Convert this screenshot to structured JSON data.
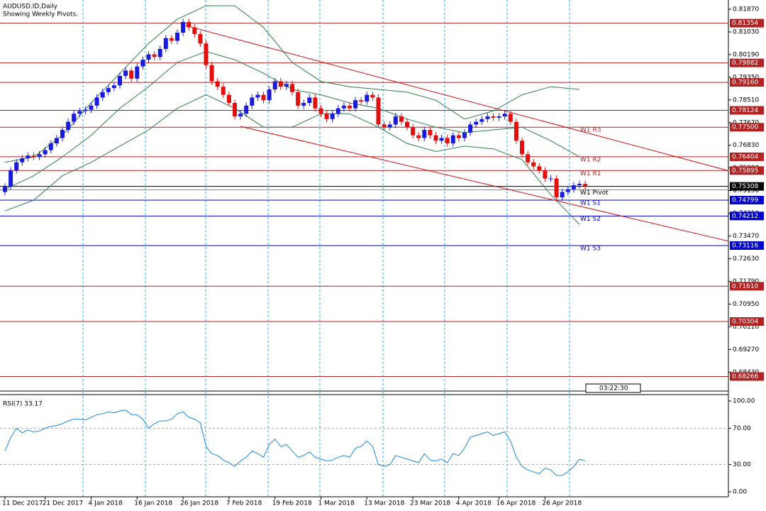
{
  "chart_data": {
    "type": "candlestick",
    "title": "AUDUSD.ID,Daily",
    "subtitle": "Showing Weekly Pivots.",
    "ylim": [
      0.67806,
      0.82212
    ],
    "yticks": [
      {
        "value": 0.8187,
        "label": "0.81870"
      },
      {
        "value": 0.8103,
        "label": "0.81030"
      },
      {
        "value": 0.8019,
        "label": "0.80190"
      },
      {
        "value": 0.7935,
        "label": "0.79350"
      },
      {
        "value": 0.7851,
        "label": "0.78510"
      },
      {
        "value": 0.7767,
        "label": "0.77670"
      },
      {
        "value": 0.7683,
        "label": "0.76830"
      },
      {
        "value": 0.7599,
        "label": "0.75990"
      },
      {
        "value": 0.7515,
        "label": "0.75150"
      },
      {
        "value": 0.7431,
        "label": "0.74310"
      },
      {
        "value": 0.7347,
        "label": "0.73470"
      },
      {
        "value": 0.7263,
        "label": "0.72630"
      },
      {
        "value": 0.7179,
        "label": "0.71790"
      },
      {
        "value": 0.7095,
        "label": "0.70950"
      },
      {
        "value": 0.7011,
        "label": "0.70110"
      },
      {
        "value": 0.6927,
        "label": "0.69270"
      },
      {
        "value": 0.6843,
        "label": "0.68430"
      }
    ],
    "xticks": [
      {
        "value": 0,
        "label": "11 Dec 2017"
      },
      {
        "value": 7,
        "label": "21 Dec 2017"
      },
      {
        "value": 15,
        "label": "4 Jan 2018"
      },
      {
        "value": 23,
        "label": "16 Jan 2018"
      },
      {
        "value": 31,
        "label": "26 Jan 2018"
      },
      {
        "value": 39,
        "label": "7 Feb 2018"
      },
      {
        "value": 47,
        "label": "19 Feb 2018"
      },
      {
        "value": 55,
        "label": "1 Mar 2018"
      },
      {
        "value": 63,
        "label": "13 Mar 2018"
      },
      {
        "value": 71,
        "label": "23 Mar 2018"
      },
      {
        "value": 79,
        "label": "4 Apr 2018"
      },
      {
        "value": 86,
        "label": "16 Apr 2018"
      },
      {
        "value": 94,
        "label": "26 Apr 2018"
      }
    ],
    "up_color": "#1a1adc",
    "down_color": "#e01010",
    "candles": [
      [
        0.751,
        0.7542,
        0.7498,
        0.753
      ],
      [
        0.753,
        0.7602,
        0.7518,
        0.759
      ],
      [
        0.759,
        0.7632,
        0.7578,
        0.762
      ],
      [
        0.762,
        0.7647,
        0.7608,
        0.7635
      ],
      [
        0.7635,
        0.7657,
        0.7623,
        0.7645
      ],
      [
        0.7645,
        0.7657,
        0.7628,
        0.764
      ],
      [
        0.764,
        0.7662,
        0.7628,
        0.765
      ],
      [
        0.765,
        0.7677,
        0.7638,
        0.7665
      ],
      [
        0.7665,
        0.7702,
        0.7653,
        0.769
      ],
      [
        0.769,
        0.7722,
        0.7678,
        0.771
      ],
      [
        0.771,
        0.7752,
        0.7698,
        0.774
      ],
      [
        0.774,
        0.7782,
        0.7728,
        0.777
      ],
      [
        0.777,
        0.7812,
        0.7758,
        0.78
      ],
      [
        0.78,
        0.7822,
        0.7788,
        0.781
      ],
      [
        0.781,
        0.7827,
        0.7798,
        0.7815
      ],
      [
        0.7815,
        0.7842,
        0.7803,
        0.783
      ],
      [
        0.783,
        0.7872,
        0.7818,
        0.786
      ],
      [
        0.786,
        0.7892,
        0.7848,
        0.788
      ],
      [
        0.788,
        0.7907,
        0.7868,
        0.7895
      ],
      [
        0.7895,
        0.7917,
        0.7883,
        0.7905
      ],
      [
        0.7905,
        0.7952,
        0.7893,
        0.794
      ],
      [
        0.794,
        0.7972,
        0.7928,
        0.796
      ],
      [
        0.796,
        0.7972,
        0.7918,
        0.793
      ],
      [
        0.793,
        0.7987,
        0.7918,
        0.7975
      ],
      [
        0.7975,
        0.8012,
        0.7963,
        0.8
      ],
      [
        0.8,
        0.8032,
        0.7988,
        0.802
      ],
      [
        0.802,
        0.8032,
        0.7998,
        0.801
      ],
      [
        0.801,
        0.8052,
        0.7998,
        0.804
      ],
      [
        0.804,
        0.8092,
        0.8028,
        0.808
      ],
      [
        0.808,
        0.8092,
        0.8058,
        0.807
      ],
      [
        0.807,
        0.8112,
        0.8058,
        0.81
      ],
      [
        0.81,
        0.8152,
        0.8088,
        0.814
      ],
      [
        0.814,
        0.8152,
        0.8108,
        0.812
      ],
      [
        0.812,
        0.8132,
        0.8083,
        0.8095
      ],
      [
        0.8095,
        0.8107,
        0.8048,
        0.806
      ],
      [
        0.806,
        0.8072,
        0.7968,
        0.798
      ],
      [
        0.798,
        0.7992,
        0.7908,
        0.792
      ],
      [
        0.792,
        0.7932,
        0.7888,
        0.79
      ],
      [
        0.79,
        0.7912,
        0.7858,
        0.787
      ],
      [
        0.787,
        0.7882,
        0.7828,
        0.784
      ],
      [
        0.784,
        0.7852,
        0.7778,
        0.779
      ],
      [
        0.779,
        0.7812,
        0.7778,
        0.78
      ],
      [
        0.78,
        0.7842,
        0.7788,
        0.783
      ],
      [
        0.783,
        0.7872,
        0.7818,
        0.786
      ],
      [
        0.786,
        0.7882,
        0.7848,
        0.787
      ],
      [
        0.787,
        0.7882,
        0.7838,
        0.785
      ],
      [
        0.785,
        0.7902,
        0.7838,
        0.789
      ],
      [
        0.789,
        0.7932,
        0.7878,
        0.792
      ],
      [
        0.792,
        0.7932,
        0.7888,
        0.79
      ],
      [
        0.79,
        0.7922,
        0.7888,
        0.791
      ],
      [
        0.791,
        0.7922,
        0.7868,
        0.788
      ],
      [
        0.788,
        0.7892,
        0.7818,
        0.783
      ],
      [
        0.783,
        0.7852,
        0.7818,
        0.784
      ],
      [
        0.784,
        0.7872,
        0.7828,
        0.786
      ],
      [
        0.786,
        0.7872,
        0.7808,
        0.782
      ],
      [
        0.782,
        0.7832,
        0.7788,
        0.78
      ],
      [
        0.78,
        0.7812,
        0.7768,
        0.778
      ],
      [
        0.778,
        0.7812,
        0.7768,
        0.78
      ],
      [
        0.78,
        0.7832,
        0.7788,
        0.782
      ],
      [
        0.782,
        0.7842,
        0.7808,
        0.783
      ],
      [
        0.783,
        0.7842,
        0.7808,
        0.782
      ],
      [
        0.782,
        0.7862,
        0.7808,
        0.785
      ],
      [
        0.785,
        0.7862,
        0.7833,
        0.7845
      ],
      [
        0.7845,
        0.7882,
        0.7833,
        0.787
      ],
      [
        0.787,
        0.7882,
        0.7848,
        0.786
      ],
      [
        0.786,
        0.7872,
        0.7748,
        0.776
      ],
      [
        0.776,
        0.7772,
        0.7738,
        0.775
      ],
      [
        0.775,
        0.7772,
        0.7738,
        0.776
      ],
      [
        0.776,
        0.7802,
        0.7748,
        0.779
      ],
      [
        0.779,
        0.7802,
        0.7758,
        0.777
      ],
      [
        0.777,
        0.7782,
        0.7738,
        0.775
      ],
      [
        0.775,
        0.7762,
        0.7708,
        0.772
      ],
      [
        0.772,
        0.7732,
        0.7698,
        0.771
      ],
      [
        0.771,
        0.7752,
        0.7698,
        0.774
      ],
      [
        0.774,
        0.7752,
        0.7708,
        0.772
      ],
      [
        0.772,
        0.7732,
        0.7688,
        0.77
      ],
      [
        0.77,
        0.7722,
        0.7688,
        0.771
      ],
      [
        0.771,
        0.7722,
        0.7678,
        0.769
      ],
      [
        0.769,
        0.7732,
        0.7678,
        0.772
      ],
      [
        0.772,
        0.7732,
        0.7698,
        0.771
      ],
      [
        0.771,
        0.7742,
        0.7698,
        0.773
      ],
      [
        0.773,
        0.7772,
        0.7718,
        0.776
      ],
      [
        0.776,
        0.7782,
        0.7748,
        0.777
      ],
      [
        0.777,
        0.7792,
        0.7758,
        0.778
      ],
      [
        0.778,
        0.7802,
        0.7768,
        0.779
      ],
      [
        0.779,
        0.7802,
        0.7773,
        0.7785
      ],
      [
        0.7785,
        0.7802,
        0.7773,
        0.779
      ],
      [
        0.779,
        0.7812,
        0.7778,
        0.78
      ],
      [
        0.78,
        0.7812,
        0.7758,
        0.777
      ],
      [
        0.777,
        0.7782,
        0.7688,
        0.77
      ],
      [
        0.77,
        0.7712,
        0.7638,
        0.765
      ],
      [
        0.765,
        0.7662,
        0.7608,
        0.762
      ],
      [
        0.762,
        0.7632,
        0.7593,
        0.7605
      ],
      [
        0.7605,
        0.7617,
        0.7578,
        0.759
      ],
      [
        0.759,
        0.7602,
        0.7548,
        0.756
      ],
      [
        0.756,
        0.7572,
        0.7548,
        0.756
      ],
      [
        0.756,
        0.7572,
        0.7478,
        0.749
      ],
      [
        0.749,
        0.7522,
        0.7478,
        0.751
      ],
      [
        0.751,
        0.7532,
        0.7498,
        0.752
      ],
      [
        0.752,
        0.7547,
        0.7508,
        0.7535
      ],
      [
        0.7535,
        0.7552,
        0.7523,
        0.754
      ],
      [
        0.754,
        0.7552,
        0.7519,
        0.7531
      ]
    ],
    "bands": {
      "color": "#2e7d4f",
      "x": [
        0,
        5,
        10,
        15,
        20,
        25,
        30,
        35,
        40,
        45,
        50,
        55,
        60,
        65,
        70,
        75,
        80,
        85,
        90,
        95,
        100
      ],
      "upper": [
        0.762,
        0.764,
        0.772,
        0.784,
        0.795,
        0.806,
        0.815,
        0.82,
        0.82,
        0.812,
        0.799,
        0.792,
        0.79,
        0.789,
        0.788,
        0.785,
        0.778,
        0.781,
        0.787,
        0.79,
        0.789
      ],
      "middle": [
        0.752,
        0.757,
        0.764,
        0.772,
        0.782,
        0.79,
        0.799,
        0.803,
        0.8,
        0.795,
        0.789,
        0.787,
        0.784,
        0.782,
        0.778,
        0.775,
        0.773,
        0.774,
        0.775,
        0.77,
        0.764
      ],
      "lower": [
        0.744,
        0.748,
        0.757,
        0.762,
        0.768,
        0.774,
        0.782,
        0.787,
        0.782,
        0.775,
        0.775,
        0.78,
        0.78,
        0.775,
        0.769,
        0.766,
        0.768,
        0.767,
        0.763,
        0.75,
        0.739
      ]
    },
    "trendlines": {
      "color": "#d01010",
      "lines": [
        {
          "x": [
            31,
            126
          ],
          "y": [
            0.8129,
            0.7589
          ]
        },
        {
          "x": [
            41,
            126
          ],
          "y": [
            0.7753,
            0.7328
          ]
        }
      ]
    },
    "levels": [
      {
        "value": 0.81354,
        "label": "0.81354",
        "color": "#b22222"
      },
      {
        "value": 0.79882,
        "label": "0.79882",
        "color": "#b22222"
      },
      {
        "value": 0.7916,
        "label": "0.79160",
        "color": "#b22222"
      },
      {
        "value": 0.78124,
        "label": "0.78124",
        "color": "#b22222"
      },
      {
        "value": 0.775,
        "label": "0.77500",
        "color": "#b22222",
        "name": "W1 R3"
      },
      {
        "value": 0.76404,
        "label": "0.76404",
        "color": "#b22222",
        "name": "W1 R2"
      },
      {
        "value": 0.75895,
        "label": "0.75895",
        "color": "#b22222",
        "name": "W1 R1"
      },
      {
        "value": 0.7518,
        "color": "#888888",
        "name": "W1 Pivot"
      },
      {
        "value": 0.75308,
        "label": "0.75308",
        "color": "#000000"
      },
      {
        "value": 0.74799,
        "label": "0.74799",
        "color": "#0000cc",
        "name": "W1 S1"
      },
      {
        "value": 0.74212,
        "label": "0.74212",
        "color": "#0000cc",
        "name": "W1 S2"
      },
      {
        "value": 0.73116,
        "label": "0.73116",
        "color": "#0000cc",
        "name": "W1 S3"
      },
      {
        "value": 0.7161,
        "label": "0.71610",
        "color": "#b22222"
      },
      {
        "value": 0.70304,
        "label": "0.70304",
        "color": "#b22222"
      },
      {
        "value": 0.68266,
        "label": "0.68266",
        "color": "#b22222"
      }
    ],
    "clock": "03:22:30",
    "rsi": {
      "title": "RSI(7) 33.17",
      "color": "#1e88d8",
      "ylim": [
        -5.5,
        107
      ],
      "yticks": [
        {
          "value": 100,
          "label": "100.00"
        },
        {
          "value": 70,
          "label": "70.00"
        },
        {
          "value": 30,
          "label": "30.00"
        },
        {
          "value": 0,
          "label": "0.00"
        }
      ],
      "values": [
        45,
        60,
        70,
        65,
        68,
        66,
        67,
        70,
        72,
        73,
        75,
        78,
        80,
        80,
        79,
        82,
        85,
        86,
        88,
        87,
        89,
        90,
        85,
        85,
        80,
        70,
        75,
        78,
        78,
        80,
        86,
        88,
        82,
        80,
        76,
        50,
        42,
        40,
        35,
        32,
        28,
        34,
        38,
        45,
        42,
        38,
        52,
        58,
        50,
        52,
        45,
        38,
        40,
        44,
        38,
        36,
        34,
        35,
        38,
        40,
        38,
        48,
        50,
        56,
        50,
        30,
        28,
        30,
        40,
        38,
        36,
        34,
        32,
        42,
        35,
        34,
        36,
        32,
        42,
        40,
        48,
        60,
        62,
        64,
        66,
        62,
        64,
        66,
        56,
        38,
        28,
        24,
        22,
        20,
        26,
        24,
        18,
        18,
        22,
        28,
        36,
        34
      ]
    }
  }
}
